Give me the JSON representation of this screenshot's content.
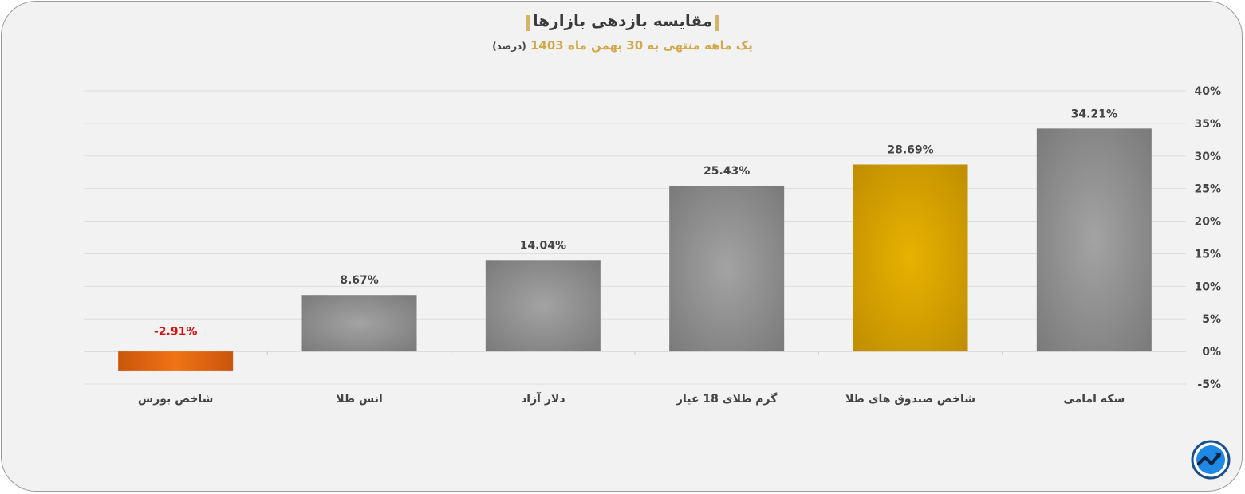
{
  "header": {
    "title": "مقایسه بازدهی بازارها",
    "subtitle": "یک ماهه منتهی به 30 بهمن ماه 1403",
    "subtitle_unit": "(درصد)"
  },
  "colors": {
    "gray_bar": "#8a8a8a",
    "gold_bar": "#d9a800",
    "orange_bar": "#e8680f",
    "negative_label": "#d11010",
    "title_accent": "#d4b36a"
  },
  "logo": {
    "icon": "trend-chart-icon"
  },
  "chart_data": {
    "type": "bar",
    "title": "مقایسه بازدهی بازارها",
    "subtitle": "یک ماهه منتهی به 30 بهمن ماه 1403 (درصد)",
    "categories": [
      "سکه امامی",
      "شاخص صندوق های طلا",
      "گرم طلای 18 عیار",
      "دلار آزاد",
      "انس طلا",
      "شاخص بورس"
    ],
    "values": [
      34.21,
      28.69,
      25.43,
      14.04,
      8.67,
      -2.91
    ],
    "value_labels": [
      "34.21%",
      "28.69%",
      "25.43%",
      "14.04%",
      "8.67%",
      "-2.91%"
    ],
    "bar_styles": [
      "gray",
      "gold",
      "gray",
      "gray",
      "gray",
      "orange"
    ],
    "ylim": [
      -5,
      40
    ],
    "yticks": [
      40,
      35,
      30,
      25,
      20,
      15,
      10,
      5,
      0,
      -5
    ],
    "ytick_labels": [
      "40%",
      "35%",
      "30%",
      "25%",
      "20%",
      "15%",
      "10%",
      "5%",
      "0%",
      "-5%"
    ],
    "y_axis_side": "right",
    "grid": true,
    "legend": "none",
    "xlabel": "",
    "ylabel": ""
  }
}
